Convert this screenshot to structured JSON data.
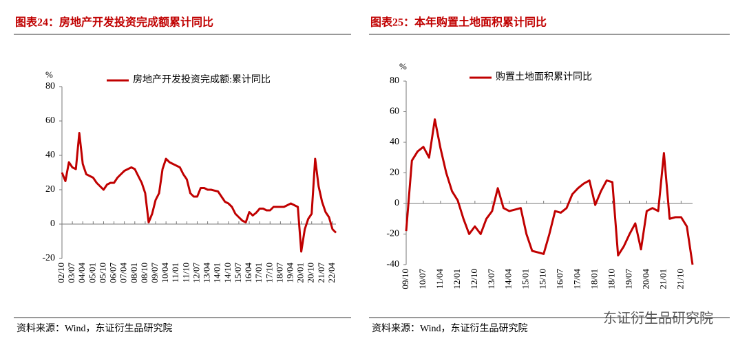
{
  "chart_data": [
    {
      "type": "line",
      "title": "图表24：房地产开发投资完成额累计同比",
      "unit": "%",
      "categories": [
        "02/10",
        null,
        null,
        "03/07",
        null,
        null,
        "04/04",
        null,
        null,
        "05/01",
        null,
        null,
        "05/10",
        null,
        null,
        "06/07",
        null,
        null,
        "07/04",
        null,
        null,
        "08/01",
        null,
        null,
        "08/10",
        null,
        null,
        "09/07",
        null,
        null,
        "10/04",
        null,
        null,
        "11/01",
        null,
        null,
        "11/10",
        null,
        null,
        "12/07",
        null,
        null,
        "13/04",
        null,
        null,
        "14/01",
        null,
        null,
        "14/10",
        null,
        null,
        "15/07",
        null,
        null,
        "16/04",
        null,
        null,
        "17/01",
        null,
        null,
        "17/10",
        null,
        null,
        "18/07",
        null,
        null,
        "19/04",
        null,
        null,
        "20/01",
        null,
        null,
        "20/10",
        null,
        null,
        "21/07",
        null,
        null,
        "22/04",
        null
      ],
      "series": [
        {
          "name": "房地产开发投资完成额:累计同比",
          "color": "#c00000",
          "values": [
            30,
            25,
            36,
            33,
            32,
            53,
            35,
            29,
            28,
            27,
            24,
            22,
            20,
            23,
            24,
            24,
            27,
            29,
            31,
            32,
            33,
            32,
            28,
            24,
            18,
            1,
            6,
            14,
            18,
            32,
            38,
            36,
            35,
            34,
            33,
            29,
            26,
            18,
            16,
            16,
            21,
            21,
            20,
            20,
            19.5,
            19,
            16,
            13,
            12,
            10,
            6,
            4,
            2,
            1,
            7,
            5,
            6.6,
            9,
            9,
            8,
            8,
            10,
            10,
            10,
            10,
            11,
            12,
            11,
            10,
            -16,
            -3,
            3,
            6,
            38,
            22,
            13,
            7,
            4,
            -3,
            -5
          ]
        }
      ],
      "ylim": [
        -20,
        80
      ],
      "yticks": [
        -20,
        0,
        20,
        40,
        60,
        80
      ],
      "grid": false,
      "legend": "top"
    },
    {
      "type": "line",
      "title": "图表25：本年购置土地面积累计同比",
      "unit": "%",
      "categories": [
        "09/10",
        null,
        null,
        "10/07",
        null,
        null,
        "11/04",
        null,
        null,
        "12/01",
        null,
        null,
        "12/10",
        null,
        null,
        "13/07",
        null,
        null,
        "14/04",
        null,
        null,
        "15/01",
        null,
        null,
        "15/10",
        null,
        null,
        "16/07",
        null,
        null,
        "17/04",
        null,
        null,
        "18/01",
        null,
        null,
        "18/10",
        null,
        null,
        "19/07",
        null,
        null,
        "20/04",
        null,
        null,
        "21/01",
        null,
        null,
        "21/10",
        null,
        null
      ],
      "series": [
        {
          "name": "购置土地面积累计同比",
          "color": "#c00000",
          "values": [
            -18,
            28,
            34,
            37,
            30,
            55,
            36,
            20,
            8,
            2,
            -10,
            -20,
            -15,
            -20,
            -10,
            -5,
            10,
            -3,
            -5,
            -4,
            -3,
            -20,
            -31,
            -32,
            -33,
            -20,
            -5,
            -6,
            -3,
            6,
            10,
            13,
            15,
            -1,
            8,
            15,
            14,
            -34,
            -28,
            -20,
            -13,
            -30,
            -5,
            -3,
            -5,
            33,
            -10,
            -9,
            -9,
            -15,
            -40
          ]
        }
      ],
      "ylim": [
        -40,
        80
      ],
      "yticks": [
        -40,
        -20,
        0,
        20,
        40,
        60,
        80
      ],
      "grid": false,
      "legend": "top"
    }
  ],
  "source": [
    "资料来源：Wind，东证衍生品研究院",
    "资料来源：Wind，东证衍生品研究院"
  ],
  "watermark": "东证衍生品研究院"
}
